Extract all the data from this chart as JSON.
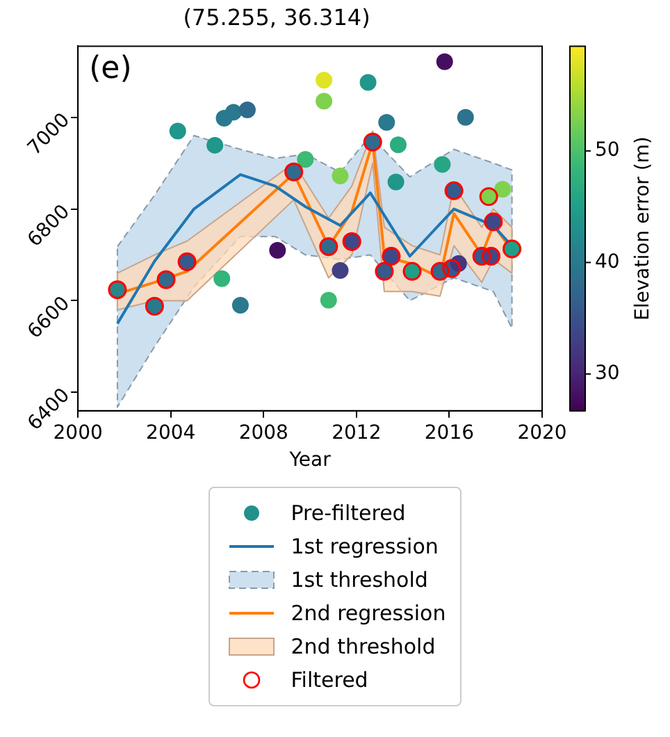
{
  "chart_data": {
    "type": "scatter",
    "title": "(75.255, 36.314)",
    "xlabel": "Year",
    "clabel": "Elevation error (m)",
    "annotations": [
      "(e)",
      "1st threshold",
      "2nd threshold"
    ],
    "xlim": [
      2000,
      2020
    ],
    "xticks": [
      2000,
      2004,
      2008,
      2012,
      2016,
      2020
    ],
    "ylim": [
      6360,
      7155
    ],
    "yticks": [
      6400,
      6600,
      6800,
      7000
    ],
    "clim": [
      26.7,
      59.4
    ],
    "cticks": [
      30,
      40,
      50
    ],
    "legend": "bottom",
    "series": [
      {
        "name": "Pre-filtered",
        "marker": "circle",
        "x": [
          2001.7,
          2003.3,
          2003.8,
          2004.7,
          2004.3,
          2005.9,
          2006.3,
          2006.7,
          2007.3,
          2006.2,
          2007.0,
          2008.6,
          2009.3,
          2009.8,
          2010.6,
          2010.6,
          2011.3,
          2010.8,
          2011.3,
          2010.8,
          2011.8,
          2012.5,
          2012.7,
          2013.3,
          2013.8,
          2013.7,
          2013.2,
          2013.5,
          2014.4,
          2015.6,
          2016.1,
          2016.4,
          2015.8,
          2016.7,
          2015.7,
          2016.2,
          2017.7,
          2018.3,
          2017.9,
          2017.4,
          2017.8,
          2018.7
        ],
        "values": [
          6624,
          6588,
          6646,
          6685,
          6970,
          6939,
          6998,
          7011,
          7016,
          6648,
          6590,
          6710,
          6881,
          6908,
          7081,
          7035,
          6872,
          6718,
          6666,
          6601,
          6729,
          7076,
          6946,
          6989,
          6940,
          6859,
          6664,
          6697,
          6664,
          6664,
          6670,
          6681,
          7121,
          7000,
          6897,
          6840,
          6827,
          6843,
          6772,
          6697,
          6697,
          6713
        ],
        "colors": [
          "#25888d",
          "#2a798e",
          "#306b8e",
          "#375a8c",
          "#20978a",
          "#20978a",
          "#2a798e",
          "#2a798e",
          "#306b8e",
          "#32b47b",
          "#2a798e",
          "#450f61",
          "#306b8e",
          "#3dba74",
          "#e1e327",
          "#7fd24d",
          "#7fd24d",
          "#306b8e",
          "#414084",
          "#3dba74",
          "#3e4989",
          "#20978a",
          "#306b8e",
          "#2a798e",
          "#2bad80",
          "#20978a",
          "#375a8c",
          "#3e4989",
          "#209f88",
          "#306b8e",
          "#375a8c",
          "#433780",
          "#450f61",
          "#2d728e",
          "#26a684",
          "#375a8c",
          "#7fd24d",
          "#7fd24d",
          "#3e4989",
          "#375a8c",
          "#3e4989",
          "#209f88"
        ]
      },
      {
        "name": "1st regression",
        "type": "line",
        "marker": "none",
        "color": "#1f77b4",
        "x": [
          2001.7,
          2003.3,
          2005,
          2007,
          2008.5,
          2009.8,
          2011.3,
          2012.6,
          2014.3,
          2016.2,
          2017.9,
          2018.7
        ],
        "values": [
          6550,
          6686,
          6800,
          6875,
          6850,
          6805,
          6764,
          6835,
          6697,
          6800,
          6764,
          6719
        ],
        "lower": [
          6368,
          6500,
          6630,
          6740,
          6740,
          6700,
          6690,
          6700,
          6600,
          6650,
          6620,
          6540
        ],
        "upper": [
          6718,
          6830,
          6960,
          6930,
          6910,
          6920,
          6880,
          6960,
          6870,
          6930,
          6900,
          6885
        ]
      },
      {
        "name": "2nd regression",
        "type": "line",
        "marker": "none",
        "color": "#ff7f0e",
        "x": [
          2001.7,
          2003.3,
          2004.7,
          2009.3,
          2010.8,
          2011.8,
          2012.7,
          2013.2,
          2014.4,
          2015.6,
          2016.2,
          2017.4,
          2017.9,
          2018.7
        ],
        "values": [
          6615,
          6640,
          6664,
          6877,
          6718,
          6794,
          6946,
          6697,
          6680,
          6650,
          6790,
          6700,
          6765,
          6710
        ],
        "lower": [
          6580,
          6600,
          6600,
          6820,
          6650,
          6700,
          6900,
          6620,
          6620,
          6610,
          6720,
          6640,
          6690,
          6660
        ],
        "upper": [
          6660,
          6700,
          6730,
          6900,
          6780,
          6850,
          6970,
          6760,
          6720,
          6700,
          6850,
          6760,
          6800,
          6760
        ]
      },
      {
        "name": "Filtered",
        "marker": "circle",
        "color": "#ff0000",
        "x": [
          2001.7,
          2003.3,
          2003.8,
          2004.7,
          2009.3,
          2010.8,
          2011.8,
          2012.7,
          2013.2,
          2013.5,
          2014.4,
          2015.6,
          2016.1,
          2016.2,
          2017.4,
          2017.7,
          2017.8,
          2017.9,
          2018.7
        ],
        "values": [
          6624,
          6588,
          6646,
          6685,
          6881,
          6718,
          6729,
          6946,
          6664,
          6697,
          6664,
          6664,
          6670,
          6840,
          6697,
          6827,
          6697,
          6772,
          6713
        ]
      }
    ]
  }
}
